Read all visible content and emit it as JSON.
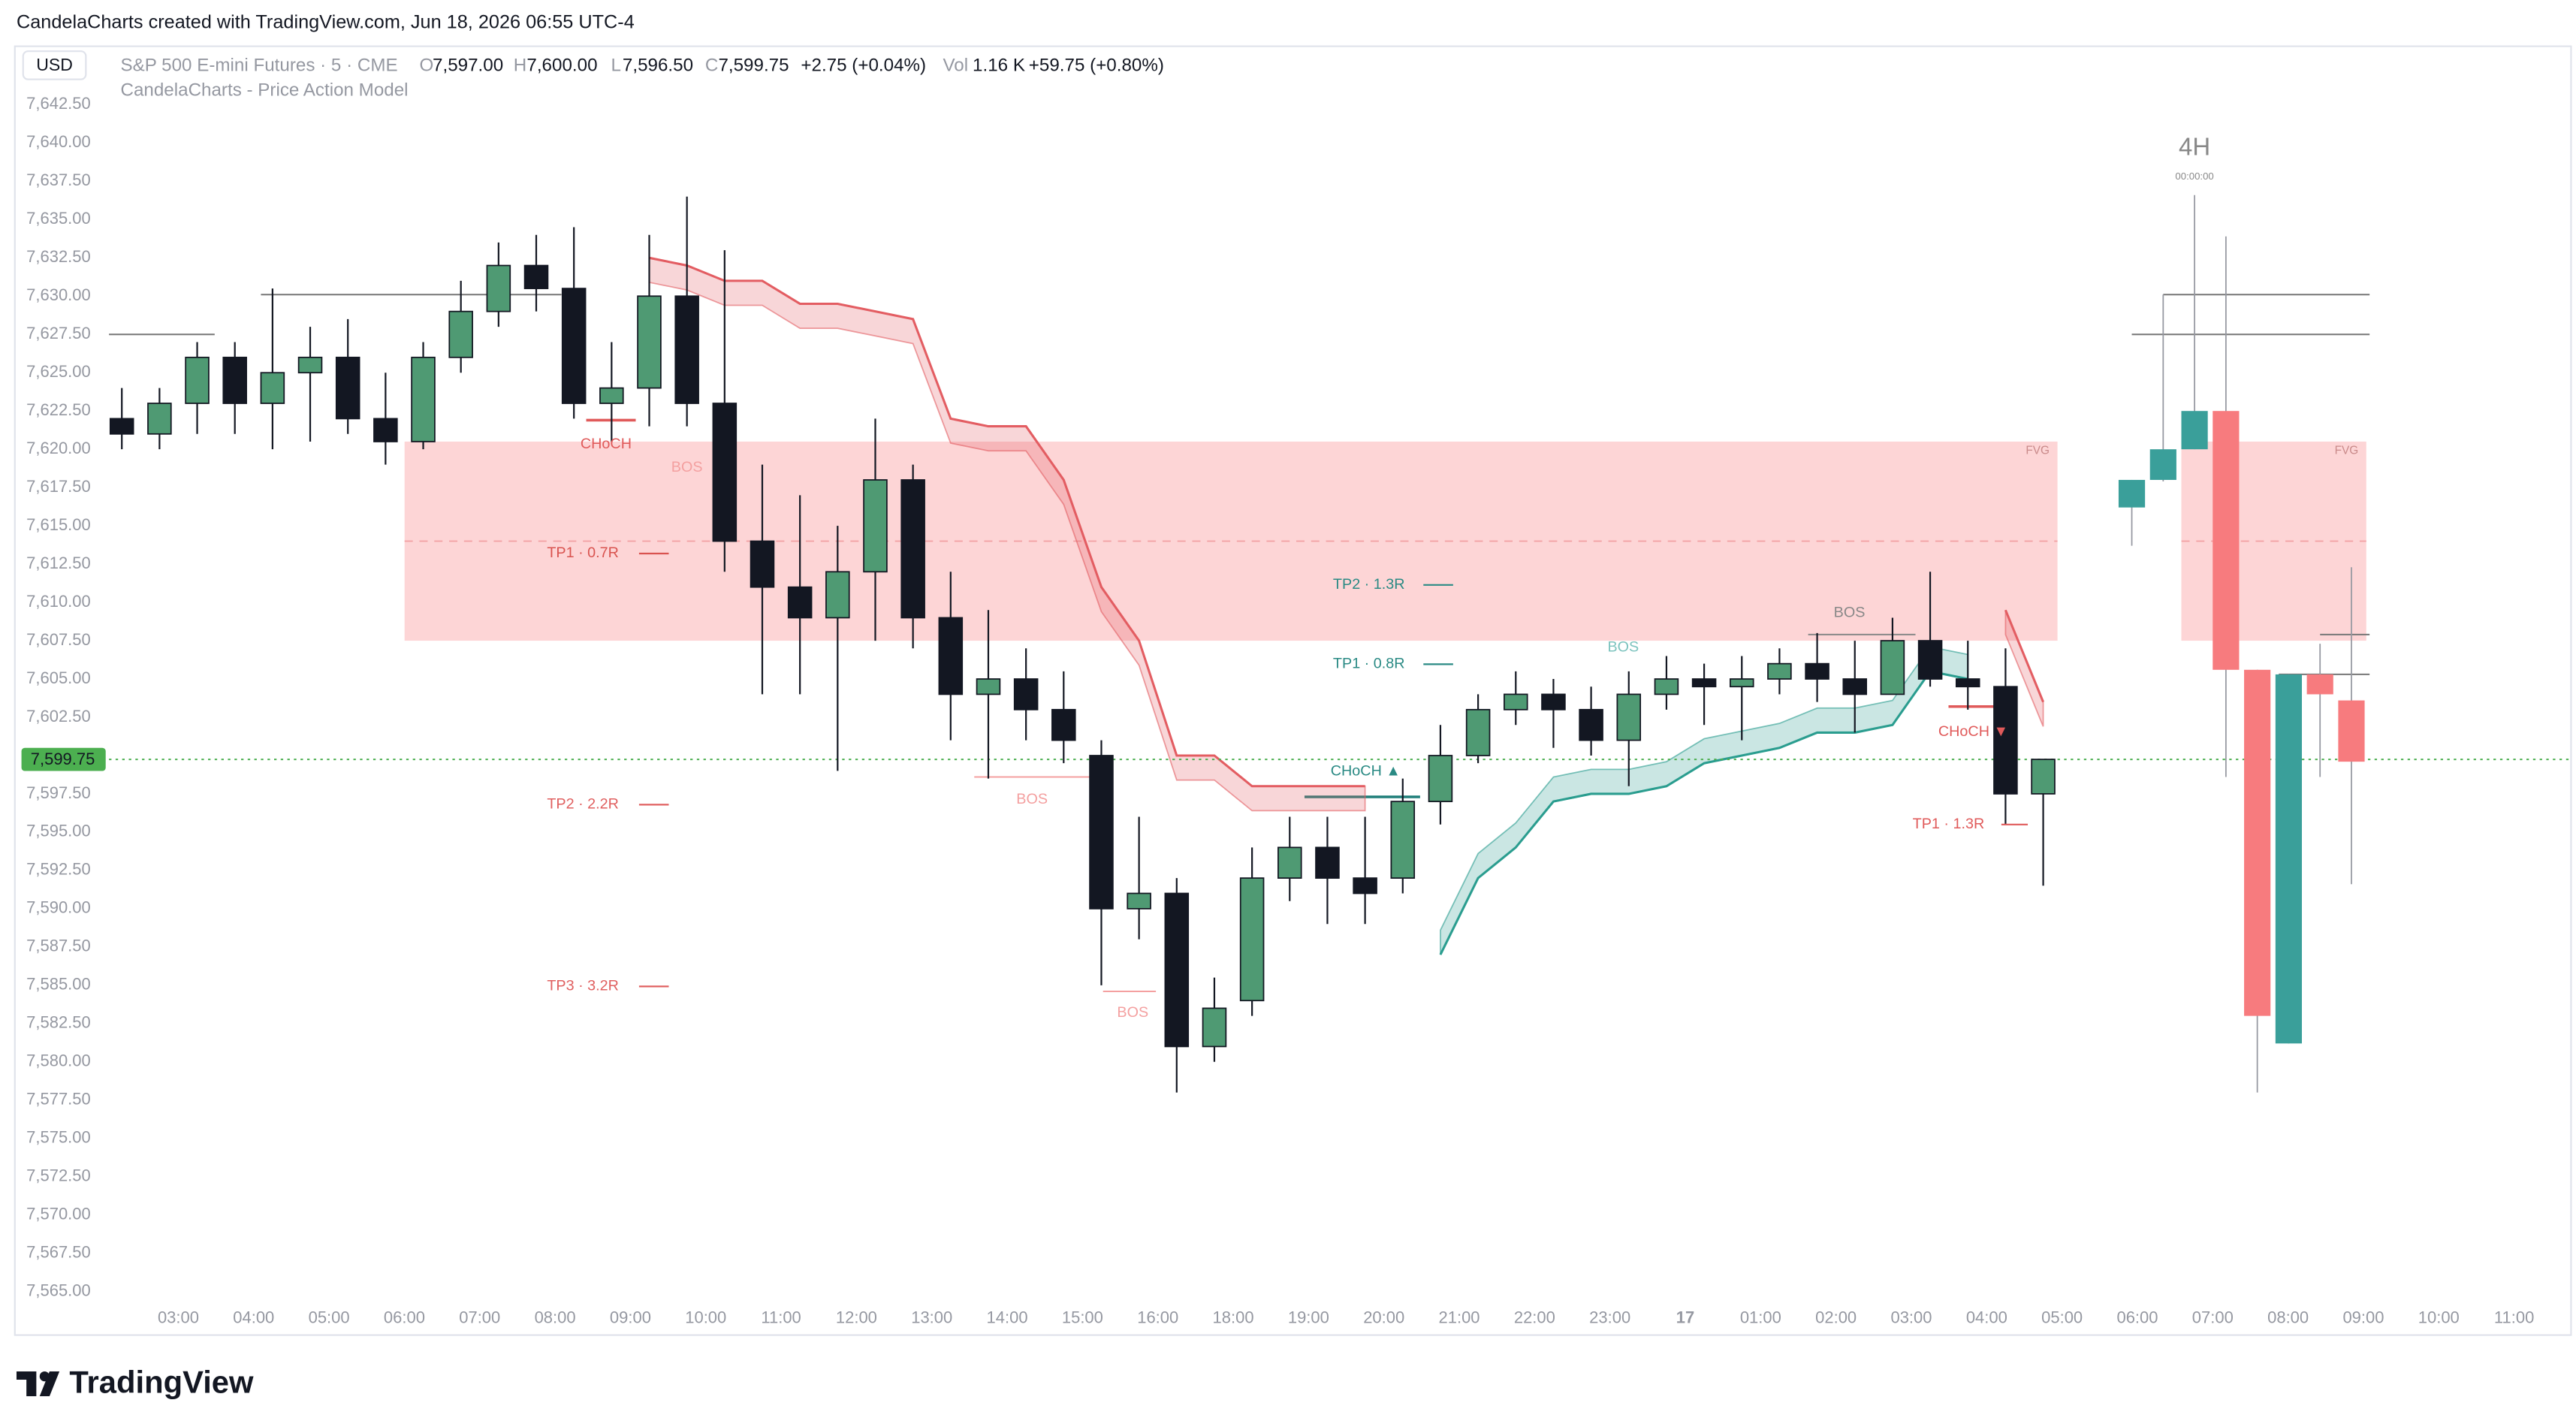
{
  "header": {
    "attribution": "CandelaCharts created with TradingView.com, Jun 18, 2026 06:55 UTC-4",
    "currency": "USD",
    "symbol": "S&P 500 E-mini Futures · 5 · CME",
    "ohlc": [
      {
        "label": "O",
        "value": "7,597.00"
      },
      {
        "label": "H",
        "value": "7,600.00"
      },
      {
        "label": "L",
        "value": "7,596.50"
      },
      {
        "label": "C",
        "value": "7,599.75"
      }
    ],
    "change": "+2.75 (+0.04%)",
    "volume_label": "Vol",
    "volume": "1.16 K",
    "volume_change": "+59.75 (+0.80%)",
    "indicator": "CandelaCharts - Price Action Model"
  },
  "chart_data": {
    "type": "candlestick",
    "x": [
      "02:00",
      "02:30",
      "03:00",
      "03:30",
      "04:00",
      "04:30",
      "05:00",
      "05:30",
      "06:00",
      "06:30",
      "07:00",
      "07:30",
      "08:00",
      "08:30",
      "09:00",
      "09:30",
      "10:00",
      "10:30",
      "11:00",
      "11:30",
      "12:00",
      "12:30",
      "13:00",
      "13:30",
      "14:00",
      "14:30",
      "15:00",
      "15:30",
      "16:00",
      "16:30",
      "18:00",
      "18:30",
      "19:00",
      "19:30",
      "20:00",
      "20:30",
      "21:00",
      "21:30",
      "22:00",
      "22:30",
      "23:00",
      "23:30",
      "00:00",
      "00:30",
      "01:00",
      "01:30",
      "02:00",
      "02:30",
      "03:00",
      "03:30",
      "04:00",
      "04:30"
    ],
    "open": [
      7622,
      7621,
      7623,
      7626,
      7623,
      7625,
      7626,
      7622,
      7620.5,
      7626,
      7629,
      7632,
      7630.5,
      7623,
      7624,
      7630,
      7623,
      7614,
      7611,
      7609,
      7612,
      7618,
      7609,
      7604,
      7605,
      7603,
      7600,
      7590,
      7591,
      7581,
      7584,
      7592,
      7594,
      7592,
      7592,
      7597,
      7600,
      7603,
      7604,
      7603,
      7601,
      7604,
      7605,
      7604.5,
      7605,
      7606,
      7605,
      7604,
      7607.5,
      7605,
      7604.5,
      7597.5
    ],
    "high": [
      7624,
      7624,
      7627,
      7627,
      7630.5,
      7628,
      7628.5,
      7625,
      7627,
      7631,
      7633.5,
      7634,
      7634.5,
      7627,
      7634,
      7636.5,
      7633,
      7619,
      7617,
      7615,
      7622,
      7619,
      7612,
      7609.5,
      7607,
      7605.5,
      7601,
      7596,
      7592,
      7585.5,
      7594,
      7596,
      7596,
      7596,
      7598.5,
      7602,
      7604,
      7605.5,
      7605,
      7604.5,
      7605.5,
      7606.5,
      7606,
      7606.5,
      7607,
      7608,
      7607.5,
      7609,
      7612,
      7607.5,
      7607,
      7599.75
    ],
    "low": [
      7620,
      7620,
      7621,
      7621,
      7620,
      7620.5,
      7621,
      7619,
      7620,
      7625,
      7628,
      7629,
      7622,
      7620.5,
      7621.5,
      7621.5,
      7612,
      7604,
      7604,
      7599,
      7607.5,
      7607,
      7601,
      7598.5,
      7601,
      7599.5,
      7585,
      7588,
      7578,
      7580,
      7583,
      7590.5,
      7589,
      7589,
      7591,
      7595.5,
      7599.5,
      7602,
      7600.5,
      7600,
      7598,
      7603,
      7602,
      7601,
      7604,
      7603.5,
      7601.5,
      7604,
      7604.5,
      7603,
      7595.5,
      7591.5
    ],
    "close": [
      7621,
      7623,
      7626,
      7623,
      7625,
      7626,
      7622,
      7620.5,
      7626,
      7629,
      7632,
      7630.5,
      7623,
      7624,
      7630,
      7623,
      7614,
      7611,
      7609,
      7612,
      7618,
      7609,
      7604,
      7605,
      7603,
      7601,
      7590,
      7591,
      7581,
      7583.5,
      7592,
      7594,
      7592,
      7591,
      7597,
      7600,
      7603,
      7604,
      7603,
      7601,
      7604,
      7605,
      7604.5,
      7605,
      7606,
      7605,
      7604,
      7607.5,
      7605,
      7604.5,
      7597.5,
      7599.75
    ],
    "up_color": "#4f9a73",
    "down_color": "#131722",
    "ylim": [
      7564.1,
      7646.1
    ],
    "yticks": [
      {
        "value": 7642.5,
        "label": "7,642.50"
      },
      {
        "value": 7640,
        "label": "7,640.00"
      },
      {
        "value": 7637.5,
        "label": "7,637.50"
      },
      {
        "value": 7635,
        "label": "7,635.00"
      },
      {
        "value": 7632.5,
        "label": "7,632.50"
      },
      {
        "value": 7630,
        "label": "7,630.00"
      },
      {
        "value": 7627.5,
        "label": "7,627.50"
      },
      {
        "value": 7625,
        "label": "7,625.00"
      },
      {
        "value": 7622.5,
        "label": "7,622.50"
      },
      {
        "value": 7620,
        "label": "7,620.00"
      },
      {
        "value": 7617.5,
        "label": "7,617.50"
      },
      {
        "value": 7615,
        "label": "7,615.00"
      },
      {
        "value": 7612.5,
        "label": "7,612.50"
      },
      {
        "value": 7610,
        "label": "7,610.00"
      },
      {
        "value": 7607.5,
        "label": "7,607.50"
      },
      {
        "value": 7605,
        "label": "7,605.00"
      },
      {
        "value": 7602.5,
        "label": "7,602.50"
      },
      {
        "value": 7597.5,
        "label": "7,597.50"
      },
      {
        "value": 7595,
        "label": "7,595.00"
      },
      {
        "value": 7592.5,
        "label": "7,592.50"
      },
      {
        "value": 7590,
        "label": "7,590.00"
      },
      {
        "value": 7587.5,
        "label": "7,587.50"
      },
      {
        "value": 7585,
        "label": "7,585.00"
      },
      {
        "value": 7582.5,
        "label": "7,582.50"
      },
      {
        "value": 7580,
        "label": "7,580.00"
      },
      {
        "value": 7577.5,
        "label": "7,577.50"
      },
      {
        "value": 7575,
        "label": "7,575.00"
      },
      {
        "value": 7572.5,
        "label": "7,572.50"
      },
      {
        "value": 7570,
        "label": "7,570.00"
      },
      {
        "value": 7567.5,
        "label": "7,567.50"
      },
      {
        "value": 7565,
        "label": "7,565.00"
      }
    ],
    "xticks": [
      "03:00",
      "04:00",
      "05:00",
      "06:00",
      "07:00",
      "08:00",
      "09:00",
      "10:00",
      "11:00",
      "12:00",
      "13:00",
      "14:00",
      "15:00",
      "16:00",
      "18:00",
      "19:00",
      "20:00",
      "21:00",
      "22:00",
      "23:00",
      "17",
      "01:00",
      "02:00",
      "03:00",
      "04:00",
      "05:00",
      "06:00",
      "07:00",
      "08:00",
      "09:00",
      "10:00",
      "11:00"
    ],
    "last_price": {
      "value": 7599.75,
      "label": "7,599.75"
    },
    "last_price_color": "#4caf50",
    "fvg": {
      "low": 7607.5,
      "high": 7620.5,
      "mid": 7614,
      "color": "#fdd5d6"
    },
    "levels": [
      7630.1,
      7627.5,
      7630.1,
      7627.5,
      7607.9,
      7605.3,
      7621.9,
      7597.3,
      7598.6,
      7584.6,
      7607.9,
      7603.2
    ],
    "bands": [
      {
        "color": "#e35d62",
        "values": [
          null,
          null,
          null,
          null,
          null,
          null,
          null,
          null,
          null,
          null,
          null,
          null,
          null,
          null,
          7632.5,
          7632,
          7631,
          7631,
          7629.5,
          7629.5,
          7629,
          7628.5,
          7622,
          7621.5,
          7621.5,
          7618,
          7611,
          7607.5,
          7600,
          7600,
          7598,
          7598,
          7598,
          7598,
          null,
          null,
          null,
          null,
          null,
          null,
          null,
          null,
          null,
          null,
          null,
          null,
          null,
          null,
          null,
          null,
          null,
          null
        ]
      },
      {
        "color": "#2a9d8f",
        "values": [
          null,
          null,
          null,
          null,
          null,
          null,
          null,
          null,
          null,
          null,
          null,
          null,
          null,
          null,
          null,
          null,
          null,
          null,
          null,
          null,
          null,
          null,
          null,
          null,
          null,
          null,
          null,
          null,
          null,
          null,
          null,
          null,
          null,
          null,
          null,
          7587,
          7592,
          7594,
          7597,
          7597.5,
          7597.5,
          7598,
          7599.5,
          7600,
          7600.5,
          7601.5,
          7601.5,
          7602,
          7605.5,
          7605,
          null,
          null
        ]
      },
      {
        "color": "#e35d62",
        "values": [
          null,
          null,
          null,
          null,
          null,
          null,
          null,
          null,
          null,
          null,
          null,
          null,
          null,
          null,
          null,
          null,
          null,
          null,
          null,
          null,
          null,
          null,
          null,
          null,
          null,
          null,
          null,
          null,
          null,
          null,
          null,
          null,
          null,
          null,
          null,
          null,
          null,
          null,
          null,
          null,
          null,
          null,
          null,
          null,
          null,
          null,
          null,
          null,
          null,
          null,
          7609.5,
          7603.5
        ]
      }
    ],
    "annotations": [
      "CHoCH",
      "BOS",
      "TP1 · 0.7R",
      "TP2 · 2.2R",
      "TP3 · 3.2R",
      "TP2 · 1.3R",
      "TP1 · 0.8R",
      "BOS",
      "CHoCH ▲",
      "BOS",
      "BOS",
      "BOS",
      "CHoCH ▼",
      "TP1 · 1.3R",
      "FVG",
      "FVG"
    ],
    "htf": {
      "label": "4H",
      "countdown": "00:00:00",
      "up_color": "#3a9f9a",
      "down_color": "#f77b7e",
      "open": [
        7616.2,
        7618,
        7620,
        7622.5,
        7605.6,
        7581.2,
        7605.3,
        7603.6
      ],
      "high": [
        7618,
        7630.1,
        7636.6,
        7633.9,
        7605.6,
        7605.3,
        7607.3,
        7612.3
      ],
      "low": [
        7613.7,
        7617.9,
        7620,
        7598.6,
        7578,
        7581.2,
        7598.6,
        7591.6
      ],
      "close": [
        7618,
        7620,
        7622.5,
        7605.6,
        7583,
        7605.3,
        7604,
        7599.6
      ]
    }
  },
  "footer": {
    "brand": "TradingView"
  }
}
